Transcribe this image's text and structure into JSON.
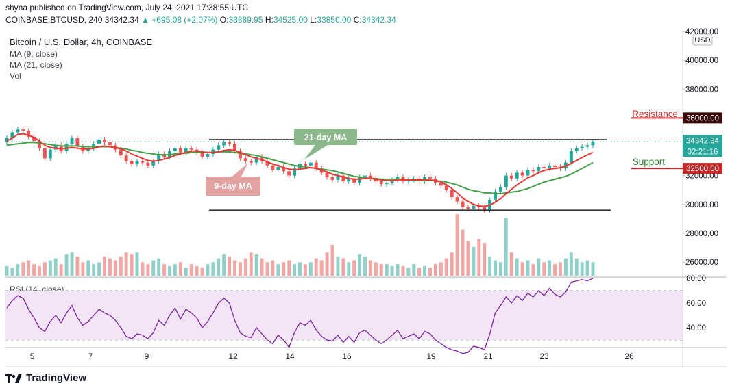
{
  "header": {
    "published": "shyna published on TradingView.com, July 24, 2021 17:38:55 UTC",
    "symbol": "COINBASE:BTCUSD, 240",
    "last": "34342.34",
    "change": "+695.08 (+2.07%)",
    "o_label": "O:",
    "o_value": "33889.95",
    "h_label": "H:",
    "h_value": "34525.00",
    "l_label": "L:",
    "l_value": "33850.00",
    "c_label": "C:",
    "c_value": "34342.34"
  },
  "legend": {
    "title": "Bitcoin / U.S. Dollar, 4h, COINBASE",
    "ma9": "MA (9, close)",
    "ma21": "MA (21, close)",
    "vol": "Vol",
    "rsi": "RSI (14, close)"
  },
  "currency_badge": "USD",
  "price_tag": {
    "value": "34342.34",
    "countdown": "02:21:16"
  },
  "annotations": {
    "resistance": "Resistance",
    "resistance_value": "36000.00",
    "support": "Support",
    "support_value": "32500.00",
    "ma21_callout": "21-day MA",
    "ma9_callout": "9-day MA"
  },
  "footer": {
    "brand": "TradingView"
  },
  "colors": {
    "up": "#26a69a",
    "down": "#ef5350",
    "ma9": "#e53935",
    "ma21": "#43a047",
    "rsi": "#7b1fa2",
    "rsi_band": "#f3e5f5",
    "annotation_red": "#c62828"
  },
  "chart_data": {
    "type": "candlestick",
    "price_axis": {
      "ylim": [
        25000,
        42000
      ],
      "ticks": [
        "42000.00",
        "40000.00",
        "38000.00",
        "36000.00",
        "34000.00",
        "32000.00",
        "30000.00",
        "28000.00",
        "26000.00"
      ]
    },
    "rsi_axis": {
      "ylim": [
        25,
        80
      ],
      "ticks": [
        "80.00",
        "60.00",
        "40.00"
      ],
      "band": [
        30,
        70
      ]
    },
    "x_ticks": [
      "5",
      "7",
      "9",
      "12",
      "14",
      "16",
      "19",
      "21",
      "23",
      "26"
    ],
    "levels": {
      "resistance": 36000,
      "support": 32500,
      "upper_trendline": 34500,
      "lower_trendline": 29600,
      "last_price": 34342.34
    },
    "close": [
      34600,
      35000,
      35200,
      35100,
      34700,
      34400,
      33900,
      33200,
      33800,
      34100,
      33700,
      34200,
      34600,
      34000,
      33700,
      33900,
      34200,
      34500,
      34300,
      34100,
      33800,
      33400,
      33000,
      32800,
      33000,
      32900,
      32700,
      33000,
      33500,
      33300,
      33700,
      33900,
      33600,
      33900,
      33800,
      33600,
      33300,
      33500,
      33800,
      34100,
      34300,
      34200,
      33700,
      33200,
      33000,
      32900,
      33300,
      33000,
      32700,
      32400,
      32600,
      32300,
      32000,
      32500,
      32800,
      32700,
      32900,
      32500,
      32200,
      31900,
      31700,
      32000,
      31600,
      31800,
      31500,
      31900,
      32000,
      31800,
      31600,
      31400,
      31500,
      31700,
      31900,
      31600,
      31700,
      31800,
      31600,
      31900,
      31800,
      31500,
      31300,
      31000,
      30500,
      30200,
      29800,
      29700,
      29900,
      29800,
      29600,
      30300,
      30900,
      31200,
      32000,
      31800,
      32200,
      32000,
      32400,
      32300,
      32600,
      32500,
      32700,
      32600,
      32500,
      32900,
      33700,
      33900,
      34000,
      34100,
      34342
    ],
    "ma9": [
      34400,
      34600,
      34850,
      34900,
      34800,
      34650,
      34400,
      34100,
      33950,
      33900,
      33850,
      33900,
      33950,
      33900,
      33850,
      33850,
      33900,
      34000,
      34050,
      34000,
      33950,
      33850,
      33700,
      33500,
      33350,
      33200,
      33050,
      33000,
      33050,
      33150,
      33250,
      33400,
      33500,
      33600,
      33700,
      33700,
      33650,
      33600,
      33600,
      33650,
      33750,
      33800,
      33750,
      33600,
      33450,
      33300,
      33200,
      33100,
      32950,
      32800,
      32700,
      32550,
      32450,
      32400,
      32450,
      32500,
      32550,
      32500,
      32400,
      32250,
      32100,
      32000,
      31900,
      31800,
      31750,
      31750,
      31800,
      31800,
      31750,
      31700,
      31650,
      31650,
      31700,
      31700,
      31700,
      31700,
      31700,
      31700,
      31700,
      31650,
      31550,
      31350,
      31100,
      30800,
      30450,
      30200,
      30000,
      29900,
      29850,
      29950,
      30150,
      30400,
      30750,
      31050,
      31350,
      31600,
      31850,
      32000,
      32200,
      32350,
      32450,
      32500,
      32550,
      32650,
      32850,
      33050,
      33250,
      33450,
      33600
    ],
    "ma21": [
      34100,
      34150,
      34200,
      34250,
      34300,
      34300,
      34250,
      34200,
      34150,
      34100,
      34050,
      34050,
      34050,
      34050,
      34000,
      34000,
      34000,
      34000,
      34000,
      34000,
      33950,
      33900,
      33850,
      33750,
      33700,
      33600,
      33550,
      33500,
      33450,
      33450,
      33450,
      33500,
      33550,
      33550,
      33600,
      33600,
      33600,
      33600,
      33600,
      33650,
      33650,
      33650,
      33600,
      33550,
      33500,
      33450,
      33400,
      33300,
      33200,
      33100,
      33000,
      32900,
      32800,
      32700,
      32650,
      32600,
      32550,
      32500,
      32450,
      32400,
      32350,
      32250,
      32150,
      32050,
      31950,
      31900,
      31850,
      31800,
      31800,
      31750,
      31750,
      31750,
      31750,
      31700,
      31700,
      31650,
      31650,
      31650,
      31650,
      31650,
      31600,
      31550,
      31450,
      31350,
      31200,
      31050,
      30950,
      30900,
      30800,
      30800,
      30750,
      30750,
      30800,
      30850,
      30900,
      31000,
      31100,
      31250,
      31400,
      31550,
      31650,
      31750,
      31850,
      31950,
      32100,
      32300,
      32500,
      32700,
      32900
    ],
    "rsi": [
      56,
      62,
      66,
      64,
      55,
      48,
      40,
      37,
      45,
      50,
      44,
      52,
      58,
      48,
      42,
      45,
      50,
      55,
      52,
      50,
      46,
      40,
      33,
      31,
      35,
      34,
      31,
      36,
      46,
      42,
      50,
      56,
      47,
      55,
      52,
      48,
      40,
      45,
      52,
      60,
      64,
      60,
      46,
      36,
      33,
      32,
      40,
      35,
      30,
      27,
      34,
      30,
      24,
      36,
      44,
      42,
      46,
      38,
      33,
      30,
      29,
      34,
      28,
      33,
      28,
      36,
      38,
      34,
      30,
      27,
      30,
      34,
      38,
      31,
      33,
      35,
      31,
      37,
      35,
      30,
      27,
      24,
      22,
      21,
      19,
      20,
      25,
      24,
      22,
      35,
      52,
      58,
      65,
      60,
      66,
      62,
      68,
      65,
      70,
      66,
      72,
      67,
      65,
      69,
      77,
      78,
      79,
      78,
      80
    ],
    "volume_scale": [
      0,
      1
    ],
    "volume": [
      0.25,
      0.2,
      0.3,
      0.35,
      0.4,
      0.3,
      0.25,
      0.35,
      0.4,
      0.45,
      0.3,
      0.55,
      0.6,
      0.5,
      0.35,
      0.4,
      0.3,
      0.35,
      0.5,
      0.45,
      0.4,
      0.5,
      0.6,
      0.55,
      0.6,
      0.35,
      0.3,
      0.4,
      0.45,
      0.3,
      0.25,
      0.3,
      0.35,
      0.2,
      0.3,
      0.25,
      0.2,
      0.3,
      0.35,
      0.45,
      0.55,
      0.5,
      0.4,
      0.35,
      0.45,
      0.6,
      0.55,
      0.45,
      0.35,
      0.4,
      0.3,
      0.35,
      0.4,
      0.3,
      0.35,
      0.3,
      0.35,
      0.45,
      0.4,
      0.6,
      0.8,
      0.5,
      0.45,
      0.35,
      0.4,
      0.55,
      0.5,
      0.4,
      0.35,
      0.3,
      0.3,
      0.25,
      0.3,
      0.25,
      0.2,
      0.3,
      0.2,
      0.25,
      0.2,
      0.3,
      0.35,
      0.45,
      0.6,
      1.6,
      1.2,
      0.9,
      0.75,
      0.95,
      0.85,
      0.5,
      0.4,
      0.35,
      1.5,
      0.6,
      0.45,
      0.35,
      0.4,
      0.3,
      0.45,
      0.35,
      0.4,
      0.3,
      0.35,
      0.45,
      0.6,
      0.45,
      0.35,
      0.4,
      0.35
    ]
  }
}
